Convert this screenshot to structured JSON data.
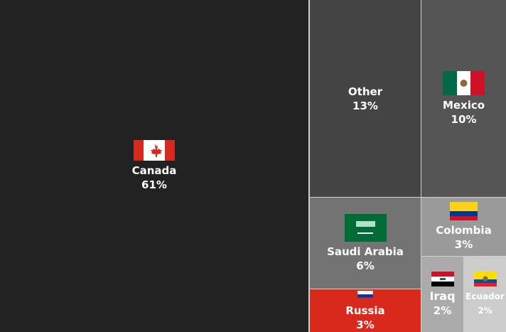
{
  "chart_data": {
    "type": "treemap",
    "items": [
      {
        "name": "Canada",
        "label": "61%",
        "value": 61,
        "color": "#222222",
        "flag": "canada-flag"
      },
      {
        "name": "Other",
        "label": "13%",
        "value": 13,
        "color": "#444444",
        "flag": null
      },
      {
        "name": "Mexico",
        "label": "10%",
        "value": 10,
        "color": "#555555",
        "flag": "mexico-flag"
      },
      {
        "name": "Saudi Arabia",
        "label": "6%",
        "value": 6,
        "color": "#737373",
        "flag": "saudi-arabia-flag"
      },
      {
        "name": "Russia",
        "label": "3%",
        "value": 3,
        "color": "#d8291c",
        "flag": "russia-flag"
      },
      {
        "name": "Colombia",
        "label": "3%",
        "value": 3,
        "color": "#9a9a9a",
        "flag": "colombia-flag"
      },
      {
        "name": "Iraq",
        "label": "2%",
        "value": 2,
        "color": "#ababab",
        "flag": "iraq-flag"
      },
      {
        "name": "Ecuador",
        "label": "2%",
        "value": 2,
        "color": "#cccccc",
        "flag": "ecuador-flag"
      }
    ]
  }
}
